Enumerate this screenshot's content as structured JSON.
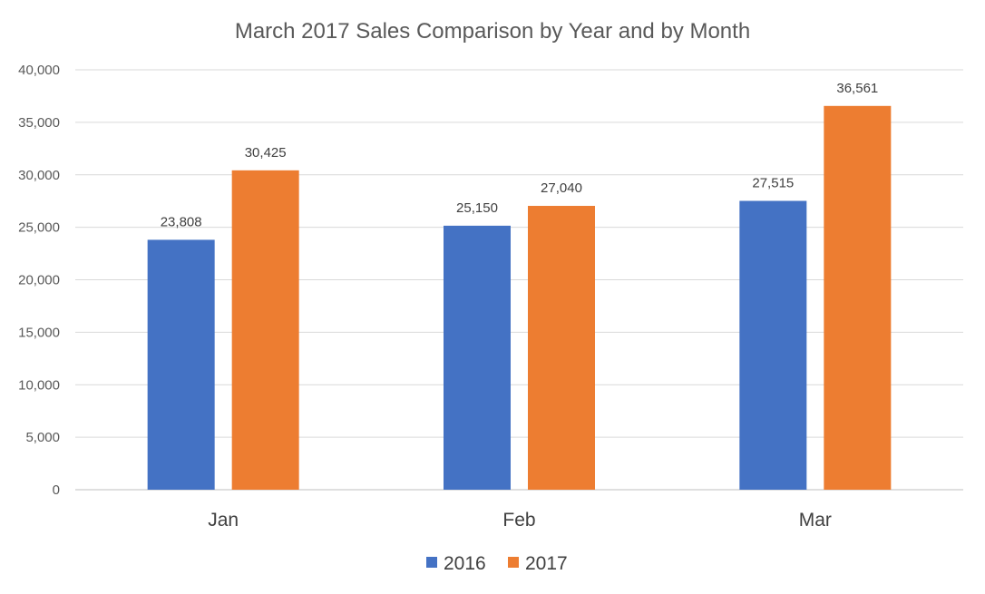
{
  "chart_data": {
    "type": "bar",
    "title": "March 2017 Sales Comparison by Year and by Month",
    "categories": [
      "Jan",
      "Feb",
      "Mar"
    ],
    "series": [
      {
        "name": "2016",
        "color": "#4472c4",
        "values": [
          23808,
          25150,
          27515
        ],
        "labels": [
          "23,808",
          "25,150",
          "27,515"
        ]
      },
      {
        "name": "2017",
        "color": "#ed7d31",
        "values": [
          30425,
          27040,
          36561
        ],
        "labels": [
          "30,425",
          "27,040",
          "36,561"
        ]
      }
    ],
    "y_ticks": [
      {
        "value": 0,
        "label": "0"
      },
      {
        "value": 5000,
        "label": "5,000"
      },
      {
        "value": 10000,
        "label": "10,000"
      },
      {
        "value": 15000,
        "label": "15,000"
      },
      {
        "value": 20000,
        "label": "20,000"
      },
      {
        "value": 25000,
        "label": "25,000"
      },
      {
        "value": 30000,
        "label": "30,000"
      },
      {
        "value": 35000,
        "label": "35,000"
      },
      {
        "value": 40000,
        "label": "40,000"
      }
    ],
    "ylim": [
      0,
      40000
    ],
    "xlabel": "",
    "ylabel": "",
    "grid": true,
    "legend": "bottom-center"
  }
}
